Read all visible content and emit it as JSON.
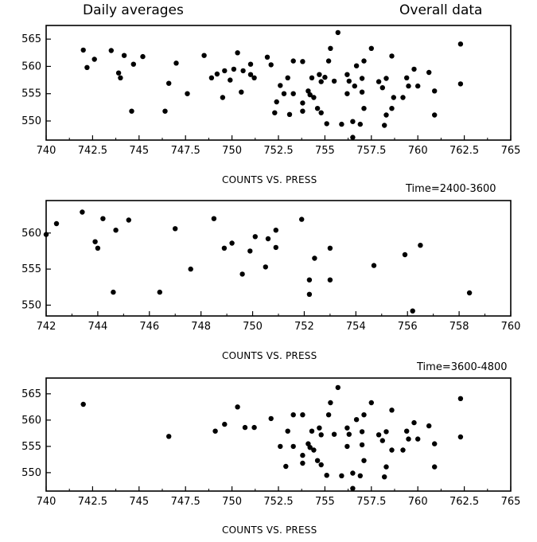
{
  "header": {
    "left_title": "Daily averages",
    "right_title": "Overall data"
  },
  "chart_data": [
    {
      "type": "scatter",
      "xlabel": "COUNTS VS. PRESS",
      "time_label": "",
      "xlim": [
        740,
        765
      ],
      "ylim": [
        546.5,
        567.5
      ],
      "xticks": [
        "740",
        "742.5",
        "745",
        "747.5",
        "750",
        "752.5",
        "755",
        "757.5",
        "760",
        "762.5",
        "765"
      ],
      "yticks": [
        "550",
        "555",
        "560",
        "565"
      ],
      "points": [
        [
          742.0,
          563.0
        ],
        [
          742.2,
          559.8
        ],
        [
          742.6,
          561.3
        ],
        [
          743.5,
          562.9
        ],
        [
          743.9,
          558.8
        ],
        [
          744.0,
          557.9
        ],
        [
          744.2,
          562.0
        ],
        [
          744.6,
          551.8
        ],
        [
          744.7,
          560.4
        ],
        [
          745.2,
          561.8
        ],
        [
          746.4,
          551.8
        ],
        [
          746.6,
          556.9
        ],
        [
          747.0,
          560.6
        ],
        [
          747.6,
          555.0
        ],
        [
          748.5,
          562.0
        ],
        [
          748.9,
          557.9
        ],
        [
          749.2,
          558.6
        ],
        [
          749.5,
          554.3
        ],
        [
          749.6,
          559.2
        ],
        [
          749.9,
          557.5
        ],
        [
          750.1,
          559.5
        ],
        [
          750.3,
          562.5
        ],
        [
          750.5,
          555.3
        ],
        [
          750.6,
          559.2
        ],
        [
          751.0,
          560.4
        ],
        [
          751.0,
          558.5
        ],
        [
          751.2,
          557.9
        ],
        [
          751.9,
          561.7
        ],
        [
          752.1,
          560.3
        ],
        [
          752.4,
          553.5
        ],
        [
          752.3,
          551.5
        ],
        [
          752.6,
          556.5
        ],
        [
          752.8,
          555.0
        ],
        [
          753.1,
          551.2
        ],
        [
          753.0,
          557.9
        ],
        [
          753.3,
          561.0
        ],
        [
          753.3,
          555.0
        ],
        [
          753.8,
          560.9
        ],
        [
          753.8,
          553.3
        ],
        [
          753.8,
          551.8
        ],
        [
          754.1,
          555.5
        ],
        [
          754.3,
          557.9
        ],
        [
          754.2,
          554.8
        ],
        [
          754.4,
          554.3
        ],
        [
          754.6,
          552.3
        ],
        [
          754.7,
          558.5
        ],
        [
          754.8,
          557.2
        ],
        [
          754.8,
          551.5
        ],
        [
          755.0,
          558.0
        ],
        [
          755.1,
          549.5
        ],
        [
          755.2,
          561.0
        ],
        [
          755.3,
          563.3
        ],
        [
          755.5,
          557.3
        ],
        [
          755.7,
          566.2
        ],
        [
          755.9,
          549.4
        ],
        [
          756.2,
          555.0
        ],
        [
          756.2,
          558.5
        ],
        [
          756.3,
          557.3
        ],
        [
          756.5,
          549.9
        ],
        [
          756.5,
          547.0
        ],
        [
          756.6,
          556.4
        ],
        [
          756.7,
          560.1
        ],
        [
          756.9,
          549.4
        ],
        [
          757.0,
          557.8
        ],
        [
          757.0,
          555.3
        ],
        [
          757.1,
          552.3
        ],
        [
          757.1,
          561.0
        ],
        [
          757.5,
          563.3
        ],
        [
          757.9,
          557.2
        ],
        [
          758.1,
          556.1
        ],
        [
          758.2,
          549.2
        ],
        [
          758.3,
          551.1
        ],
        [
          758.3,
          557.8
        ],
        [
          758.6,
          552.3
        ],
        [
          758.6,
          561.9
        ],
        [
          758.7,
          554.3
        ],
        [
          759.2,
          554.3
        ],
        [
          759.4,
          557.9
        ],
        [
          759.5,
          556.4
        ],
        [
          759.8,
          559.5
        ],
        [
          760.0,
          556.4
        ],
        [
          760.6,
          558.9
        ],
        [
          760.9,
          555.5
        ],
        [
          760.9,
          551.1
        ],
        [
          762.3,
          564.1
        ],
        [
          762.3,
          556.8
        ]
      ]
    },
    {
      "type": "scatter",
      "xlabel": "COUNTS VS. PRESS",
      "time_label": "Time=2400-3600",
      "xlim": [
        742,
        760
      ],
      "ylim": [
        548.5,
        564.5
      ],
      "xticks": [
        "742",
        "744",
        "746",
        "748",
        "750",
        "752",
        "754",
        "756",
        "758",
        "760"
      ],
      "yticks": [
        "550",
        "555",
        "560"
      ],
      "points": [
        [
          742.0,
          559.8
        ],
        [
          742.4,
          561.3
        ],
        [
          743.4,
          562.9
        ],
        [
          743.9,
          558.8
        ],
        [
          744.0,
          557.9
        ],
        [
          744.2,
          562.0
        ],
        [
          744.6,
          551.8
        ],
        [
          744.7,
          560.4
        ],
        [
          745.2,
          561.8
        ],
        [
          746.4,
          551.8
        ],
        [
          747.0,
          560.6
        ],
        [
          747.6,
          555.0
        ],
        [
          748.5,
          562.0
        ],
        [
          748.9,
          557.9
        ],
        [
          749.2,
          558.6
        ],
        [
          749.6,
          554.3
        ],
        [
          749.9,
          557.5
        ],
        [
          750.1,
          559.5
        ],
        [
          750.5,
          555.3
        ],
        [
          750.6,
          559.2
        ],
        [
          750.9,
          560.4
        ],
        [
          750.9,
          558.0
        ],
        [
          751.9,
          561.9
        ],
        [
          752.2,
          553.5
        ],
        [
          752.2,
          551.5
        ],
        [
          752.4,
          556.5
        ],
        [
          753.0,
          557.9
        ],
        [
          753.0,
          553.5
        ],
        [
          754.7,
          555.5
        ],
        [
          755.9,
          557.0
        ],
        [
          756.2,
          549.2
        ],
        [
          756.5,
          558.3
        ],
        [
          758.4,
          551.7
        ]
      ]
    },
    {
      "type": "scatter",
      "xlabel": "COUNTS VS. PRESS",
      "time_label": "Time=3600-4800",
      "xlim": [
        740,
        765
      ],
      "ylim": [
        546.5,
        568
      ],
      "xticks": [
        "740",
        "742.5",
        "745",
        "747.5",
        "750",
        "752.5",
        "755",
        "757.5",
        "760",
        "762.5",
        "765"
      ],
      "yticks": [
        "550",
        "555",
        "560",
        "565"
      ],
      "points": [
        [
          742.0,
          563.0
        ],
        [
          746.6,
          556.9
        ],
        [
          749.1,
          557.9
        ],
        [
          749.6,
          559.2
        ],
        [
          750.3,
          562.5
        ],
        [
          750.7,
          558.6
        ],
        [
          751.2,
          558.6
        ],
        [
          752.1,
          560.3
        ],
        [
          752.6,
          555.0
        ],
        [
          752.9,
          551.2
        ],
        [
          753.0,
          557.9
        ],
        [
          753.3,
          561.0
        ],
        [
          753.3,
          555.0
        ],
        [
          753.8,
          561.0
        ],
        [
          753.8,
          553.3
        ],
        [
          753.8,
          551.8
        ],
        [
          754.1,
          555.5
        ],
        [
          754.3,
          557.9
        ],
        [
          754.2,
          554.8
        ],
        [
          754.4,
          554.3
        ],
        [
          754.6,
          552.3
        ],
        [
          754.7,
          558.5
        ],
        [
          754.8,
          557.2
        ],
        [
          754.8,
          551.5
        ],
        [
          755.1,
          549.5
        ],
        [
          755.2,
          561.0
        ],
        [
          755.3,
          563.3
        ],
        [
          755.5,
          557.3
        ],
        [
          755.7,
          566.2
        ],
        [
          755.9,
          549.4
        ],
        [
          756.2,
          555.0
        ],
        [
          756.2,
          558.5
        ],
        [
          756.3,
          557.3
        ],
        [
          756.5,
          549.9
        ],
        [
          756.5,
          547.0
        ],
        [
          756.7,
          560.1
        ],
        [
          756.9,
          549.4
        ],
        [
          757.0,
          557.8
        ],
        [
          757.0,
          555.3
        ],
        [
          757.1,
          552.3
        ],
        [
          757.1,
          561.0
        ],
        [
          757.5,
          563.3
        ],
        [
          757.9,
          557.2
        ],
        [
          758.1,
          556.1
        ],
        [
          758.2,
          549.2
        ],
        [
          758.3,
          551.1
        ],
        [
          758.3,
          557.8
        ],
        [
          758.6,
          554.3
        ],
        [
          758.6,
          561.9
        ],
        [
          759.2,
          554.3
        ],
        [
          759.4,
          557.9
        ],
        [
          759.5,
          556.4
        ],
        [
          759.8,
          559.5
        ],
        [
          760.0,
          556.4
        ],
        [
          760.6,
          558.9
        ],
        [
          760.9,
          555.5
        ],
        [
          760.9,
          551.1
        ],
        [
          762.3,
          564.1
        ],
        [
          762.3,
          556.8
        ]
      ]
    }
  ]
}
